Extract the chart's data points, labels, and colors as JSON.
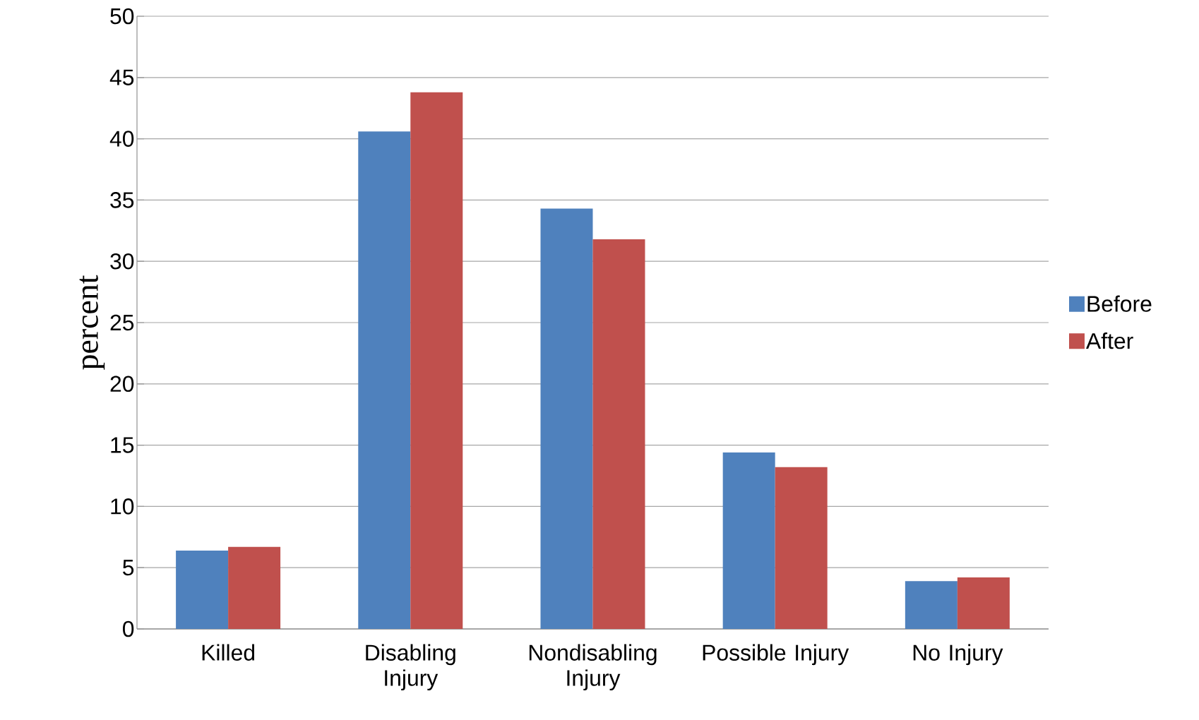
{
  "chart_data": {
    "type": "bar",
    "ylabel": "percent",
    "categories": [
      "Killed",
      "Disabling Injury",
      "Nondisabling Injury",
      "Possible Injury",
      "No Injury"
    ],
    "series": [
      {
        "name": "Before",
        "color": "#4f81bd",
        "values": [
          6.4,
          40.6,
          34.3,
          14.4,
          3.9
        ]
      },
      {
        "name": "After",
        "color": "#c0504d",
        "values": [
          6.7,
          43.8,
          31.8,
          13.2,
          4.2
        ]
      }
    ],
    "ylim": [
      0,
      50
    ],
    "yticks": [
      0,
      5,
      10,
      15,
      20,
      25,
      30,
      35,
      40,
      45,
      50
    ],
    "grid": "y",
    "legend": "right"
  }
}
